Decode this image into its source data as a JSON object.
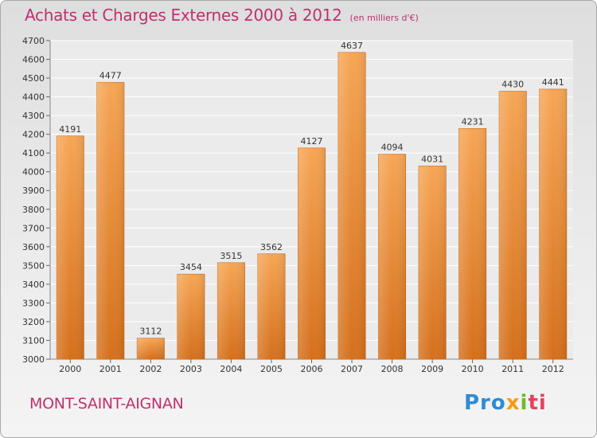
{
  "header": {
    "title": "Achats et Charges Externes 2000 à 2012",
    "subtitle": "(en milliers d'€)"
  },
  "footer": {
    "city": "MONT-SAINT-AIGNAN",
    "logo": [
      "Pro",
      "x",
      "i",
      "ti"
    ]
  },
  "chart_data": {
    "type": "bar",
    "title": "Achats et Charges Externes 2000 à 2012",
    "subtitle": "(en milliers d'€)",
    "categories": [
      "2000",
      "2001",
      "2002",
      "2003",
      "2004",
      "2005",
      "2006",
      "2007",
      "2008",
      "2009",
      "2010",
      "2011",
      "2012"
    ],
    "values": [
      4191,
      4477,
      3112,
      3454,
      3515,
      3562,
      4127,
      4637,
      4094,
      4031,
      4231,
      4430,
      4441
    ],
    "ylim": [
      3000,
      4700
    ],
    "yticks": [
      3000,
      3100,
      3200,
      3300,
      3400,
      3500,
      3600,
      3700,
      3800,
      3900,
      4000,
      4100,
      4200,
      4300,
      4400,
      4500,
      4600,
      4700
    ],
    "grid": true,
    "bar_color": "#f0a050",
    "bar_color_dark": "#d87520"
  }
}
